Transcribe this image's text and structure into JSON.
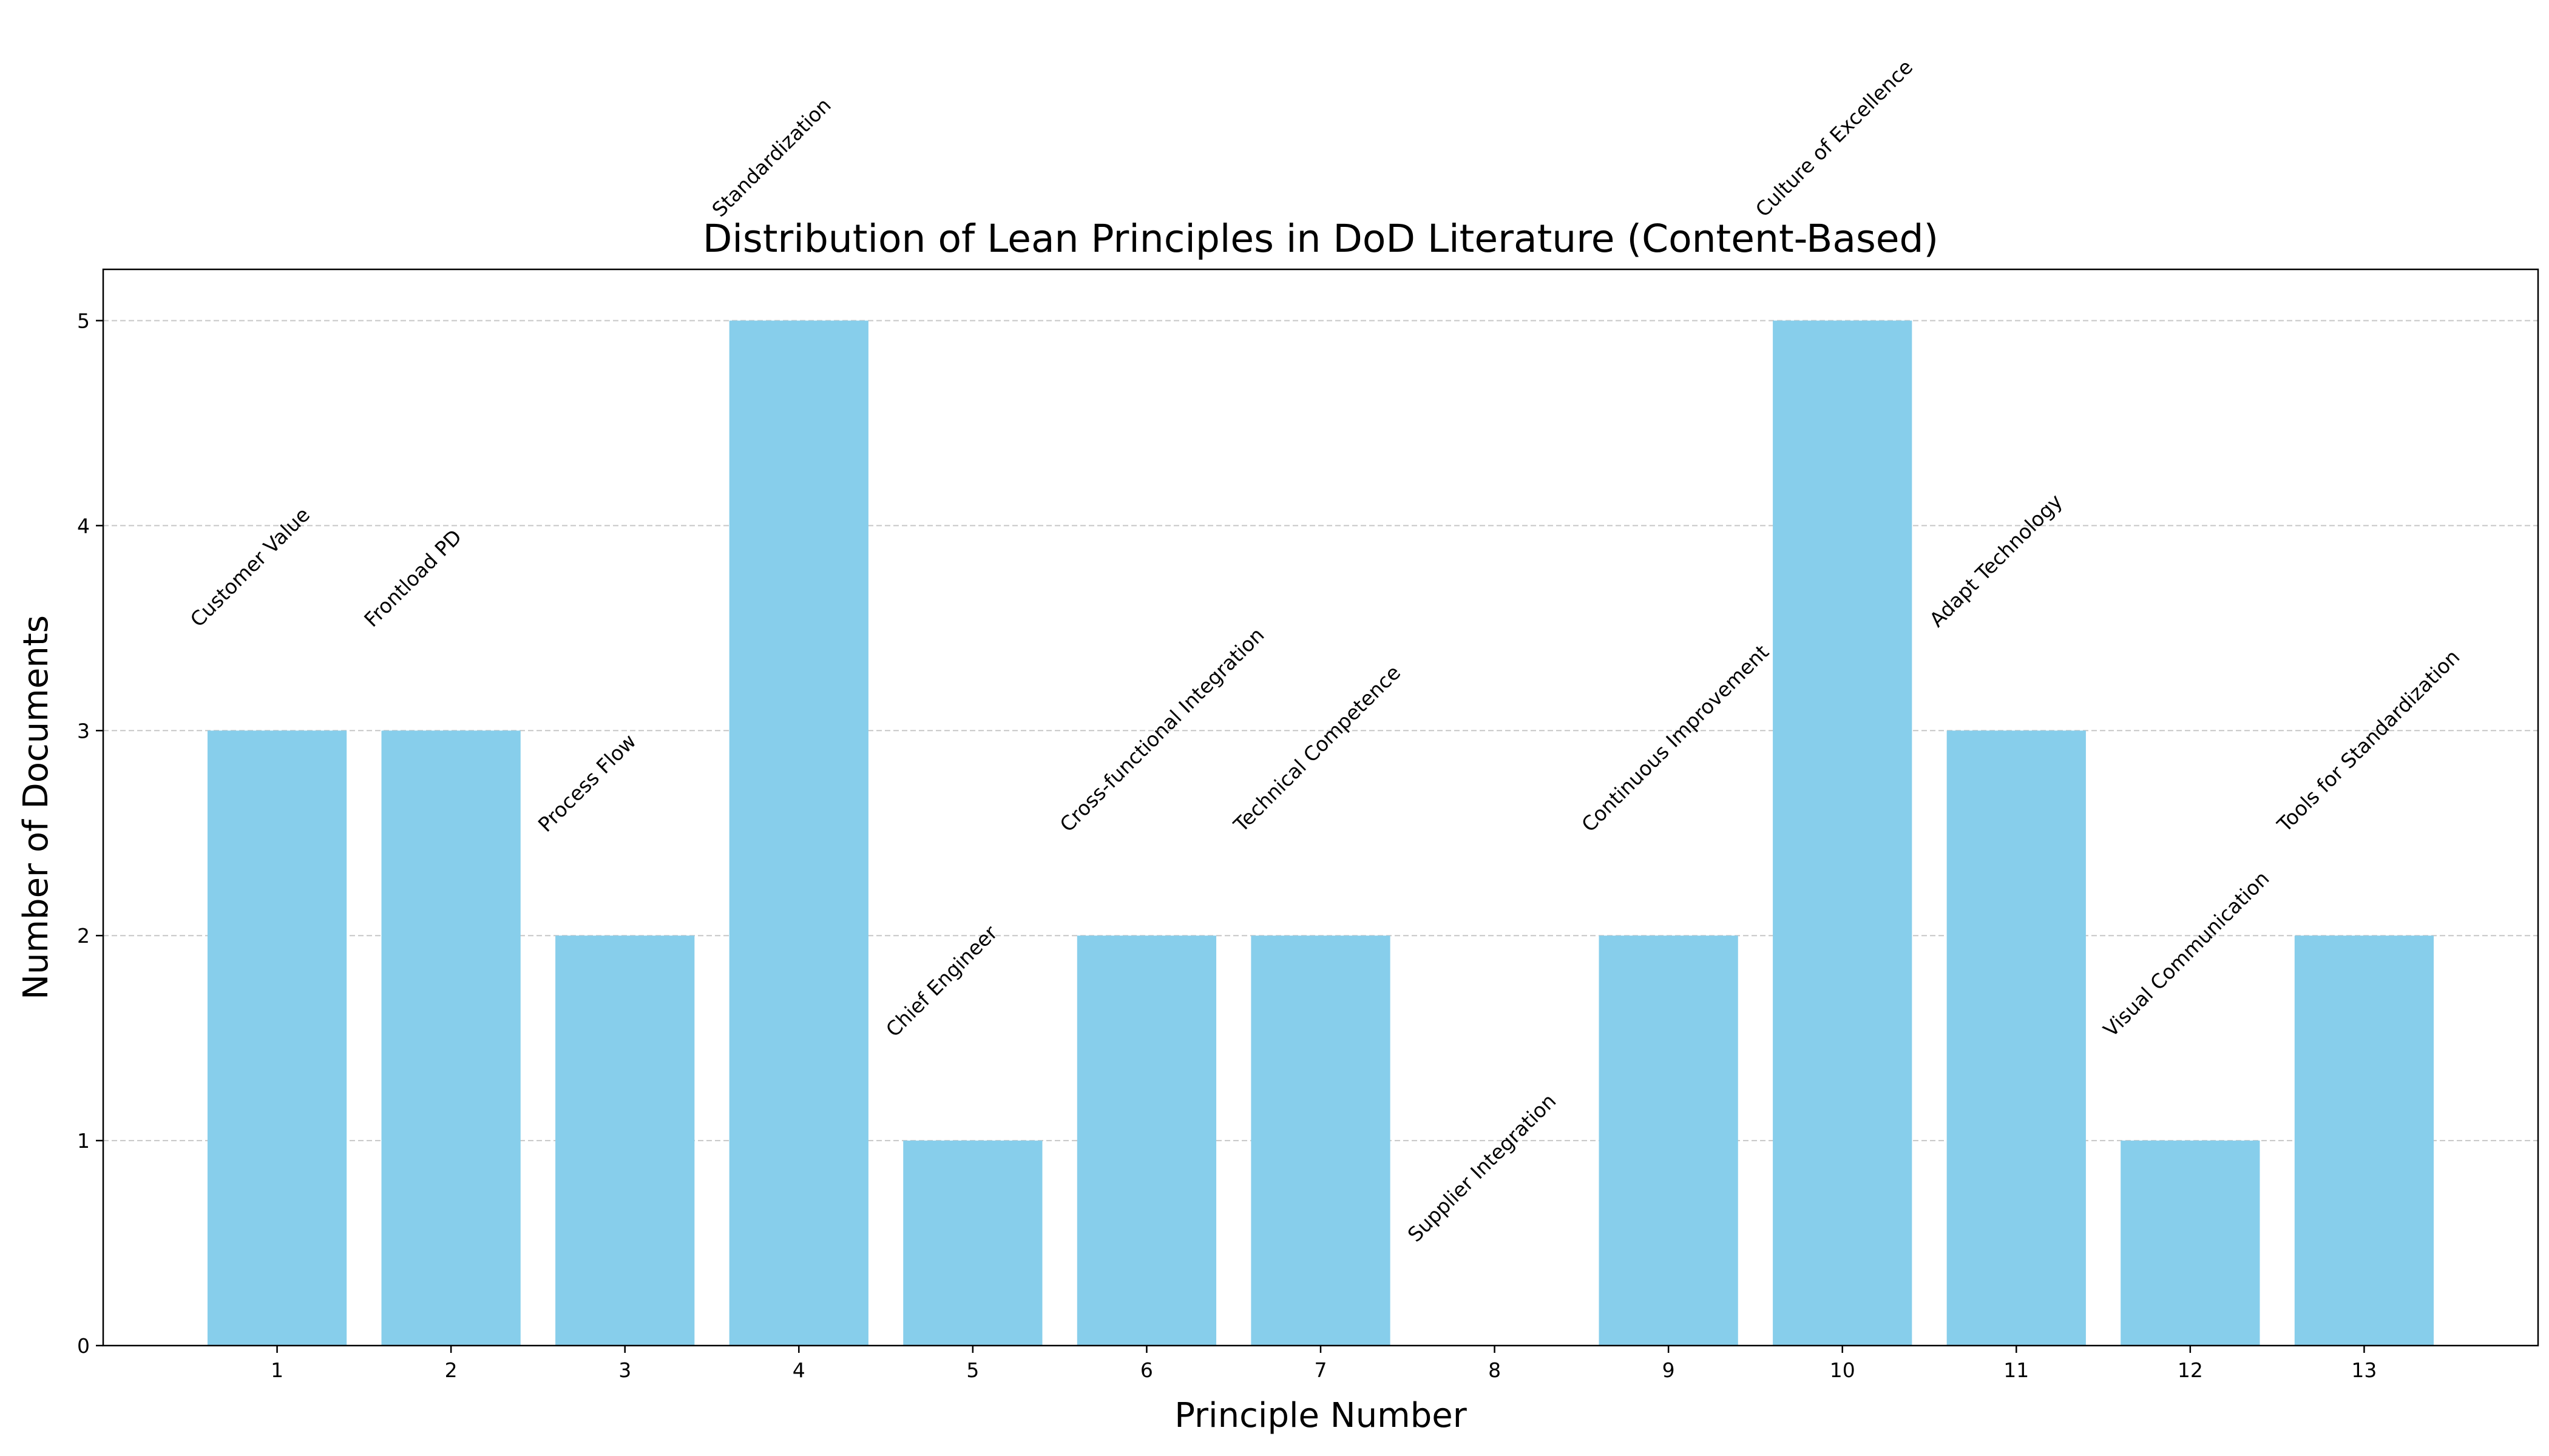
{
  "chart_data": {
    "type": "bar",
    "title": "Distribution of Lean Principles in DoD Literature (Content-Based)",
    "xlabel": "Principle Number",
    "ylabel": "Number of Documents",
    "categories": [
      "1",
      "2",
      "3",
      "4",
      "5",
      "6",
      "7",
      "8",
      "9",
      "10",
      "11",
      "12",
      "13"
    ],
    "principle_names": [
      "Customer Value",
      "Frontload PD",
      "Process Flow",
      "Standardization",
      "Chief Engineer",
      "Cross-functional Integration",
      "Technical Competence",
      "Supplier Integration",
      "Continuous Improvement",
      "Culture of Excellence",
      "Adapt Technology",
      "Visual Communication",
      "Tools for Standardization"
    ],
    "values": [
      3,
      3,
      2,
      5,
      1,
      2,
      2,
      0,
      2,
      5,
      3,
      1,
      2
    ],
    "ylim": [
      0,
      5.25
    ],
    "xlim": [
      0,
      14
    ],
    "yticks": [
      0,
      1,
      2,
      3,
      4,
      5
    ],
    "grid": "y-dashed",
    "bar_color": "#87ceeb"
  }
}
